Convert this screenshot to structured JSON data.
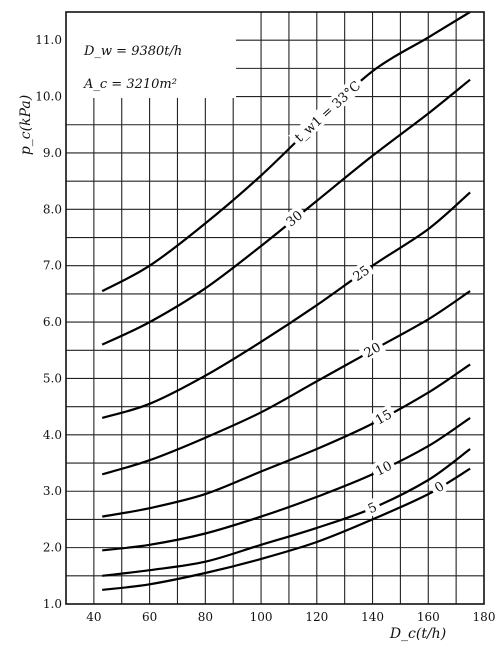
{
  "chart_data": {
    "type": "line",
    "xlabel": "D_c(t/h)",
    "ylabel": "p_c(kPa)",
    "xlim": [
      30,
      180
    ],
    "ylim": [
      1.0,
      11.5
    ],
    "x_ticks": [
      40,
      60,
      80,
      100,
      120,
      140,
      160,
      180
    ],
    "y_ticks": [
      "1.0",
      "2.0",
      "3.0",
      "4.0",
      "5.0",
      "6.0",
      "7.0",
      "8.0",
      "9.0",
      "10.0",
      "11.0"
    ],
    "grid": true,
    "annotations": [
      "D_w = 9380t/h",
      "A_c = 3210m²"
    ],
    "series_label_prefix": "t_w1 = ",
    "series": [
      {
        "name": "33°C",
        "x": [
          43,
          60,
          80,
          100,
          120,
          140,
          160,
          175
        ],
        "y": [
          6.55,
          7.0,
          7.75,
          8.6,
          9.55,
          10.45,
          11.05,
          11.5
        ]
      },
      {
        "name": "30",
        "x": [
          43,
          60,
          80,
          100,
          120,
          140,
          160,
          175
        ],
        "y": [
          5.6,
          6.0,
          6.6,
          7.35,
          8.15,
          8.95,
          9.7,
          10.3
        ]
      },
      {
        "name": "25",
        "x": [
          43,
          60,
          80,
          100,
          120,
          140,
          160,
          175
        ],
        "y": [
          4.3,
          4.55,
          5.05,
          5.65,
          6.3,
          7.0,
          7.65,
          8.3
        ]
      },
      {
        "name": "20",
        "x": [
          43,
          60,
          80,
          100,
          120,
          140,
          160,
          175
        ],
        "y": [
          3.3,
          3.55,
          3.95,
          4.4,
          4.95,
          5.5,
          6.05,
          6.55
        ]
      },
      {
        "name": "15",
        "x": [
          43,
          60,
          80,
          100,
          120,
          140,
          160,
          175
        ],
        "y": [
          2.55,
          2.7,
          2.95,
          3.35,
          3.75,
          4.2,
          4.75,
          5.25
        ]
      },
      {
        "name": "10",
        "x": [
          43,
          60,
          80,
          100,
          120,
          140,
          160,
          175
        ],
        "y": [
          1.95,
          2.05,
          2.25,
          2.55,
          2.9,
          3.3,
          3.8,
          4.3
        ]
      },
      {
        "name": "5",
        "x": [
          43,
          60,
          80,
          100,
          120,
          140,
          160,
          175
        ],
        "y": [
          1.5,
          1.6,
          1.75,
          2.05,
          2.35,
          2.7,
          3.2,
          3.75
        ]
      },
      {
        "name": "0",
        "x": [
          43,
          60,
          80,
          100,
          120,
          140,
          160,
          175
        ],
        "y": [
          1.25,
          1.35,
          1.55,
          1.8,
          2.1,
          2.5,
          2.95,
          3.4
        ]
      }
    ]
  }
}
